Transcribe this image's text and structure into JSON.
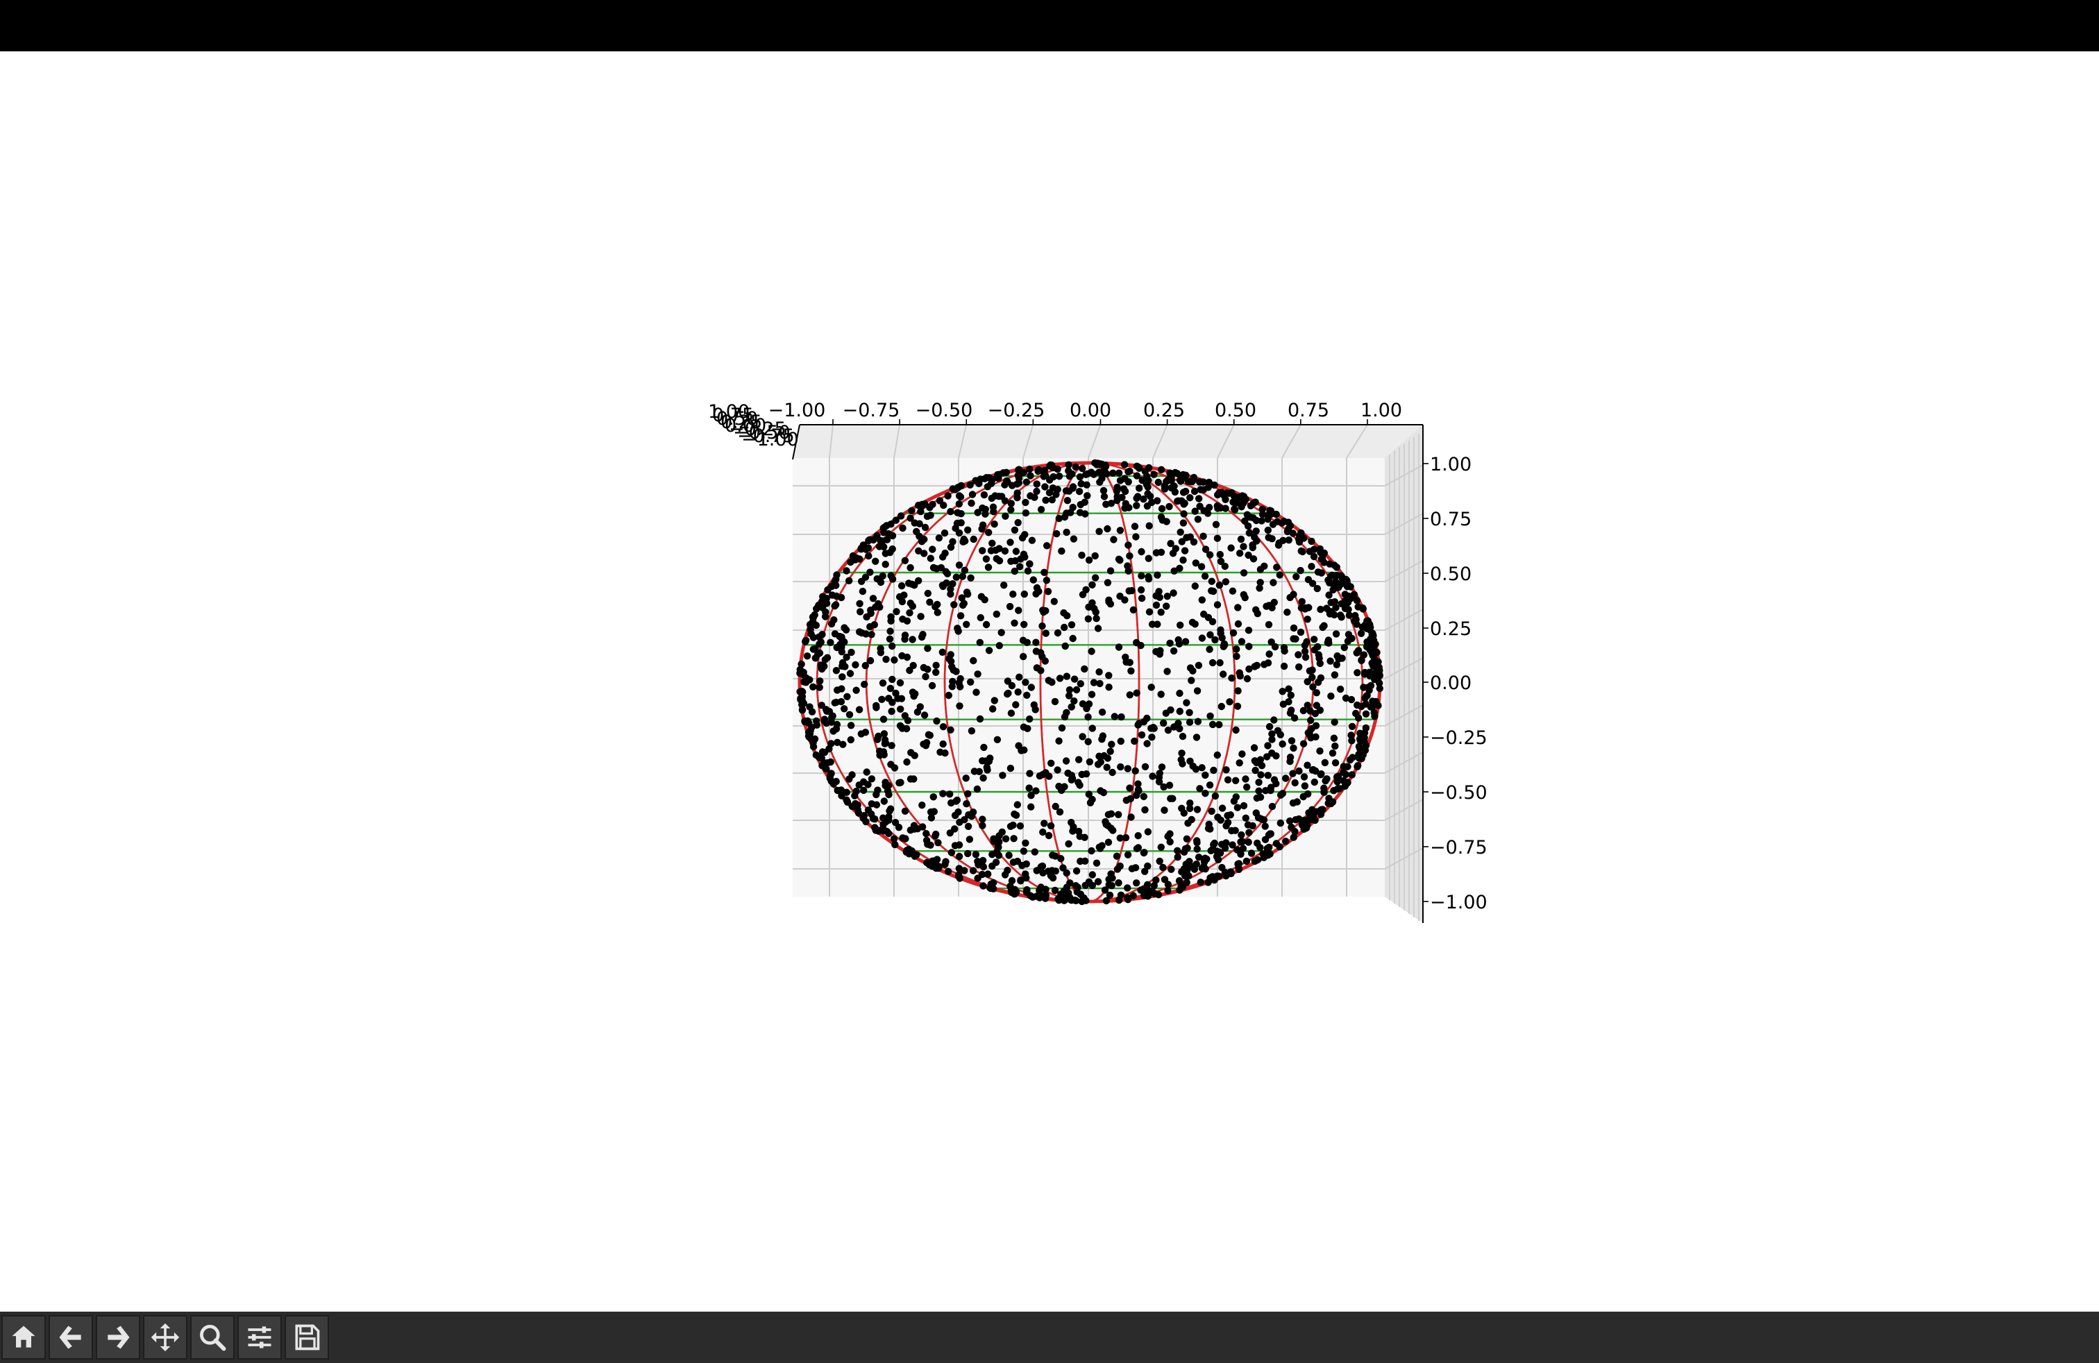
{
  "window": {
    "toolbar": [
      {
        "name": "home-icon",
        "label": "Home"
      },
      {
        "name": "back-icon",
        "label": "Back"
      },
      {
        "name": "forward-icon",
        "label": "Forward"
      },
      {
        "name": "pan-icon",
        "label": "Pan"
      },
      {
        "name": "zoom-icon",
        "label": "Zoom"
      },
      {
        "name": "configure-subplots-icon",
        "label": "Configure subplots"
      },
      {
        "name": "save-icon",
        "label": "Save"
      }
    ]
  },
  "colors": {
    "points": "#000000",
    "meridians": "#d62728",
    "parallels": "#2ca02c",
    "pane": "#f2f2f2",
    "grid": "#cccccc",
    "toolbar_bg": "#2b2b2b"
  },
  "chart_data": {
    "type": "scatter",
    "projection": "3d",
    "view": "top-down (looking along z axis)",
    "title": "",
    "xlabel": "",
    "ylabel": "",
    "zlabel": "",
    "xlim": [
      -1.0,
      1.0
    ],
    "ylim": [
      -1.0,
      1.0
    ],
    "zlim": [
      -1.0,
      1.0
    ],
    "x_ticks": [
      "−1.00",
      "−0.75",
      "−0.50",
      "−0.25",
      "0.00",
      "0.25",
      "0.50",
      "0.75",
      "1.00"
    ],
    "y_ticks": [
      "1.00",
      "0.75",
      "0.50",
      "0.25",
      "0.00",
      "−0.25",
      "−0.50",
      "−0.75",
      "−1.00"
    ],
    "z_ticks_overlapping": [
      "1.00",
      "0.75",
      "0.50",
      "0.25",
      "0.00",
      "−0.25",
      "−0.50",
      "−0.75",
      "−1.00"
    ],
    "grid": true,
    "sphere": {
      "radius": 1.0,
      "center": [
        0,
        0,
        0
      ]
    },
    "scatter_points_count": 2000,
    "meridian_x_positions": [
      -1.0,
      -0.94,
      -0.77,
      -0.5,
      -0.17,
      0.17,
      0.5,
      0.77,
      0.94,
      1.0
    ],
    "parallel_y_positions": [
      -1.0,
      -0.94,
      -0.77,
      -0.5,
      -0.17,
      0.17,
      0.5,
      0.77,
      0.94,
      1.0
    ],
    "series": [
      {
        "kind": "scatter",
        "color": "#000000",
        "marker": "o"
      },
      {
        "kind": "wireframe-meridians",
        "color": "#d62728"
      },
      {
        "kind": "wireframe-parallels",
        "color": "#2ca02c"
      }
    ]
  }
}
